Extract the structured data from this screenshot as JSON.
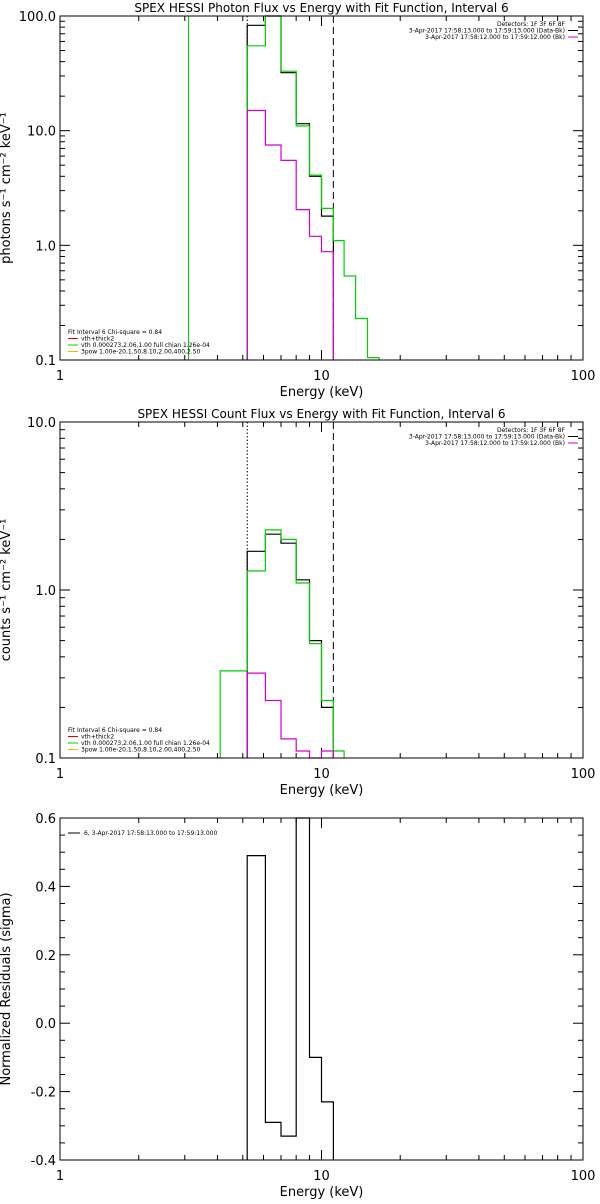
{
  "chart_data": [
    {
      "type": "line",
      "step": true,
      "title": "SPEX HESSI Photon Flux vs Energy with Fit Function, Interval 6",
      "xlabel": "Energy (keV)",
      "ylabel": "photons s⁻¹ cm⁻² keV⁻¹",
      "xscale": "log",
      "yscale": "log",
      "xlim": [
        1,
        100
      ],
      "ylim": [
        0.1,
        100
      ],
      "xticks": [
        {
          "v": 1,
          "label": "1"
        },
        {
          "v": 10,
          "label": "10"
        },
        {
          "v": 100,
          "label": "100"
        }
      ],
      "yticks": [
        {
          "v": 0.1,
          "label": "0.1"
        },
        {
          "v": 1,
          "label": "1.0"
        },
        {
          "v": 10,
          "label": "10.0"
        },
        {
          "v": 100,
          "label": "100.0"
        }
      ],
      "vlines": [
        {
          "x": 3.1,
          "style": "solid",
          "color": "#00d000"
        },
        {
          "x": 5.2,
          "style": "dotted",
          "color": "#000000"
        },
        {
          "x": 11.1,
          "style": "dashed",
          "color": "#000000"
        }
      ],
      "legend_top": [
        {
          "text": "Detectors: 1F 3F 6F 8F",
          "color": "",
          "swatch": false
        },
        {
          "text": "3-Apr-2017 17:58:13.000 to 17:59:13.000 (Data-Bk)",
          "color": "#000000",
          "swatch": true
        },
        {
          "text": "3-Apr-2017 17:58:12.000 to 17:59:12.000 (Bk)",
          "color": "#d000d0",
          "swatch": true
        }
      ],
      "legend_bottom": [
        {
          "text": "Fit Interval 6   Chi-square = 0.84",
          "color": "",
          "swatch": false
        },
        {
          "text": "vth+thick2",
          "color": "#e00000",
          "swatch": true
        },
        {
          "text": "vth 0.000273,2.06,1.00   full chian 1.26e-04",
          "color": "#00d000",
          "swatch": true
        },
        {
          "text": "3pow 1.00e-20,1.50,8.10,2.00,400,2.50",
          "color": "#e0c000",
          "swatch": true
        }
      ],
      "series": [
        {
          "role": "data",
          "color": "#000000",
          "edges": [
            5.2,
            6.1,
            7.0,
            8.0,
            9.0,
            10.0,
            11.1
          ],
          "values": [
            83,
            100,
            32,
            11.5,
            4.0,
            1.8
          ]
        },
        {
          "role": "fit",
          "color": "#00d000",
          "edges": [
            5.2,
            6.1,
            7.0,
            8.0,
            9.0,
            10.0,
            11.1,
            12.2,
            13.5,
            15.0,
            16.6
          ],
          "values": [
            55,
            100,
            33,
            11,
            4.1,
            2.1,
            1.1,
            0.54,
            0.23,
            0.105
          ]
        },
        {
          "role": "background",
          "color": "#d000d0",
          "edges": [
            5.2,
            6.1,
            7.0,
            8.0,
            9.0,
            10.0,
            11.1
          ],
          "values": [
            15,
            7.5,
            5.5,
            2.05,
            1.2,
            0.88
          ]
        }
      ]
    },
    {
      "type": "line",
      "step": true,
      "title": "SPEX HESSI Count Flux vs Energy with Fit Function, Interval 6",
      "xlabel": "Energy (keV)",
      "ylabel": "counts s⁻¹ cm⁻² keV⁻¹",
      "xscale": "log",
      "yscale": "log",
      "xlim": [
        1,
        100
      ],
      "ylim": [
        0.1,
        10
      ],
      "xticks": [
        {
          "v": 1,
          "label": "1"
        },
        {
          "v": 10,
          "label": "10"
        },
        {
          "v": 100,
          "label": "100"
        }
      ],
      "yticks": [
        {
          "v": 0.1,
          "label": "0.1"
        },
        {
          "v": 1,
          "label": "1.0"
        },
        {
          "v": 10,
          "label": "10.0"
        }
      ],
      "vlines": [
        {
          "x": 5.2,
          "style": "dotted",
          "color": "#000000"
        },
        {
          "x": 11.1,
          "style": "dashed",
          "color": "#000000"
        }
      ],
      "legend_top": [
        {
          "text": "Detectors: 1F 3F 6F 8F",
          "color": "",
          "swatch": false
        },
        {
          "text": "3-Apr-2017 17:58:13.000 to 17:59:13.000 (Data-Bk)",
          "color": "#000000",
          "swatch": true
        },
        {
          "text": "3-Apr-2017 17:58:12.000 to 17:59:12.000 (Bk)",
          "color": "#d000d0",
          "swatch": true
        }
      ],
      "legend_bottom": [
        {
          "text": "Fit Interval 6   Chi-square = 0.84",
          "color": "",
          "swatch": false
        },
        {
          "text": "vth+thick2",
          "color": "#e00000",
          "swatch": true
        },
        {
          "text": "vth 0.000273,2.06,1.00   full chian 1.26e-04",
          "color": "#00d000",
          "swatch": true
        },
        {
          "text": "3pow 1.00e-20,1.50,8.10,2.00,400,2.50",
          "color": "#e0c000",
          "swatch": true
        }
      ],
      "series": [
        {
          "role": "data",
          "color": "#000000",
          "edges": [
            5.2,
            6.1,
            7.0,
            8.0,
            9.0,
            10.0,
            11.1
          ],
          "values": [
            1.7,
            2.15,
            1.9,
            1.15,
            0.5,
            0.2
          ]
        },
        {
          "role": "fit",
          "color": "#00d000",
          "edges": [
            4.1,
            5.2,
            6.1,
            7.0,
            8.0,
            9.0,
            10.0,
            11.1,
            12.2
          ],
          "values": [
            0.33,
            1.3,
            2.28,
            2.0,
            1.1,
            0.48,
            0.22,
            0.11
          ]
        },
        {
          "role": "background",
          "color": "#d000d0",
          "edges": [
            5.2,
            6.1,
            7.0,
            8.0,
            9.0,
            10.0,
            11.1
          ],
          "values": [
            0.32,
            0.22,
            0.13,
            0.11,
            0.1,
            0.11
          ]
        }
      ]
    },
    {
      "type": "line",
      "step": true,
      "title": "",
      "xlabel": "Energy (keV)",
      "ylabel": "Normalized Residuals (sigma)",
      "xscale": "log",
      "yscale": "linear",
      "xlim": [
        1,
        100
      ],
      "ylim": [
        -0.4,
        0.6
      ],
      "xticks": [
        {
          "v": 1,
          "label": "1"
        },
        {
          "v": 10,
          "label": "10"
        },
        {
          "v": 100,
          "label": "100"
        }
      ],
      "yticks": [
        {
          "v": -0.4,
          "label": "-0.4"
        },
        {
          "v": -0.2,
          "label": "-0.2"
        },
        {
          "v": 0,
          "label": "0.0"
        },
        {
          "v": 0.2,
          "label": "0.2"
        },
        {
          "v": 0.4,
          "label": "0.4"
        },
        {
          "v": 0.6,
          "label": "0.6"
        }
      ],
      "vlines": [],
      "legend_top": [
        {
          "text": "6, 3-Apr-2017 17:58:13.000 to 17:59:13.000",
          "color": "#000000",
          "swatch": true
        }
      ],
      "legend_bottom": [],
      "series": [
        {
          "role": "residuals",
          "color": "#000000",
          "edges": [
            5.2,
            6.1,
            7.0,
            8.0,
            9.0,
            10.0,
            11.1
          ],
          "values": [
            0.49,
            -0.29,
            -0.33,
            0.6,
            -0.1,
            -0.23
          ]
        }
      ]
    }
  ]
}
